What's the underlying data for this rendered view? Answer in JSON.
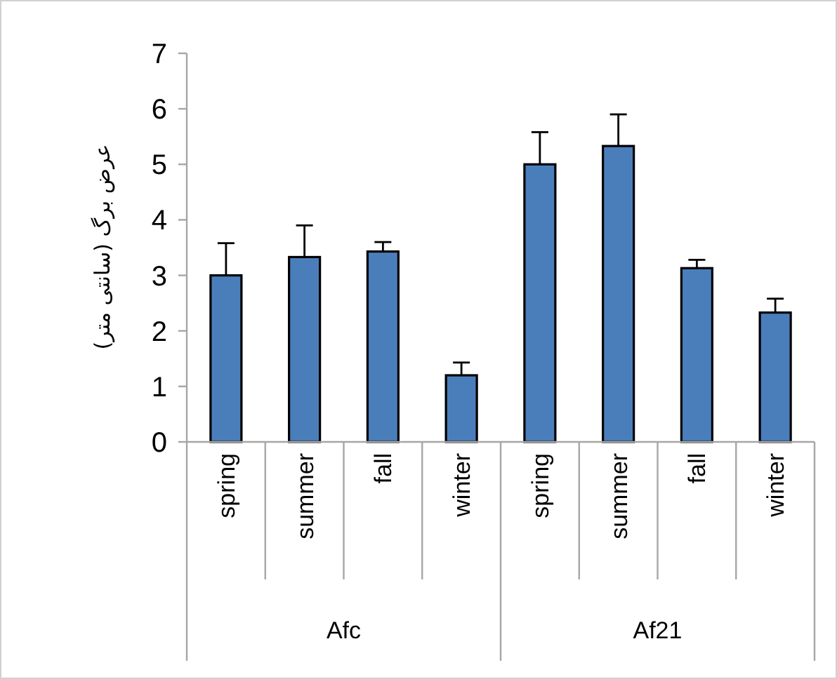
{
  "chart_data": {
    "type": "bar",
    "ylabel": "عرض برگ (سانتی متر)",
    "categories": [
      "spring",
      "summer",
      "fall",
      "winter",
      "spring",
      "summer",
      "fall",
      "winter"
    ],
    "values": [
      3.0,
      3.33,
      3.43,
      1.2,
      5.0,
      5.33,
      3.13,
      2.33
    ],
    "errors": [
      [
        3.0,
        3.58
      ],
      [
        3.33,
        3.9
      ],
      [
        3.43,
        3.6
      ],
      [
        1.2,
        1.43
      ],
      [
        5.0,
        5.58
      ],
      [
        5.33,
        5.9
      ],
      [
        3.13,
        3.28
      ],
      [
        2.33,
        2.58
      ]
    ],
    "color": "#4a7ebb",
    "ylim": [
      0,
      7
    ],
    "yticks": [
      0,
      1,
      2,
      3,
      4,
      5,
      6,
      7
    ],
    "annotations": [
      "Afc",
      "Af21"
    ]
  }
}
